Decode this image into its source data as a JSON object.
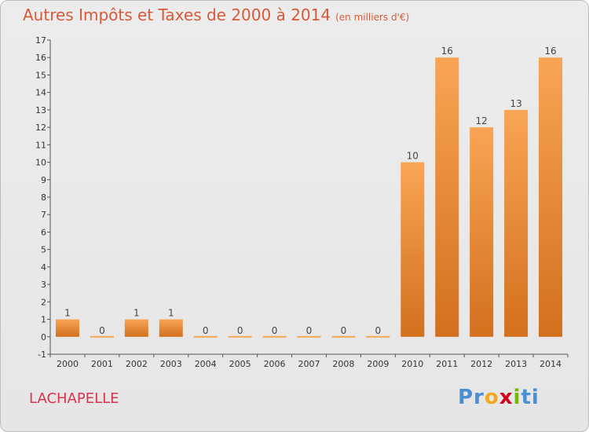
{
  "header": {
    "title": "Autres Impôts et Taxes de 2000 à 2014",
    "unit": "(en milliers d'€)"
  },
  "footer": {
    "commune": "LACHAPELLE",
    "logo_parts": [
      {
        "text": "Pr",
        "color": "#4a8fd4"
      },
      {
        "text": "o",
        "color": "#f5a623"
      },
      {
        "text": "x",
        "color": "#d0021b"
      },
      {
        "text": "i",
        "color": "#7ab800"
      },
      {
        "text": "ti",
        "color": "#4a8fd4"
      }
    ]
  },
  "colors": {
    "bar_top": "#f8a555",
    "bar_bottom": "#d2701e",
    "title": "#d95a3a",
    "commune": "#d9324e"
  },
  "chart_data": {
    "type": "bar",
    "categories": [
      "2000",
      "2001",
      "2002",
      "2003",
      "2004",
      "2005",
      "2006",
      "2007",
      "2008",
      "2009",
      "2010",
      "2011",
      "2012",
      "2013",
      "2014"
    ],
    "values": [
      1,
      0,
      1,
      1,
      0,
      0,
      0,
      0,
      0,
      0,
      10,
      16,
      12,
      13,
      16
    ],
    "data_labels": [
      "1",
      "0",
      "1",
      "1",
      "0",
      "0",
      "0",
      "0",
      "0",
      "0",
      "10",
      "16",
      "12",
      "13",
      "16"
    ],
    "ylim": [
      -1,
      17
    ],
    "yticks": [
      -1,
      0,
      1,
      2,
      3,
      4,
      5,
      6,
      7,
      8,
      9,
      10,
      11,
      12,
      13,
      14,
      15,
      16,
      17
    ],
    "grid": false,
    "title": "Autres Impôts et Taxes de 2000 à 2014",
    "xlabel": "",
    "ylabel": ""
  }
}
